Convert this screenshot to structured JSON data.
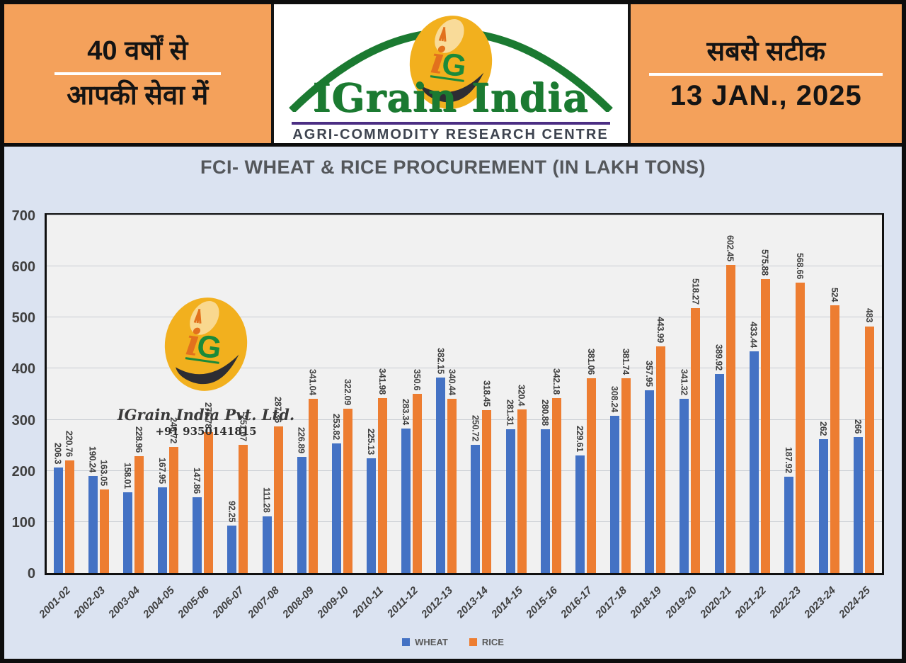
{
  "header": {
    "left": {
      "line1": "40 वर्षों से",
      "line2": "आपकी सेवा में"
    },
    "center": {
      "monogram": "iG",
      "brand": "IGrain India",
      "tagline": "AGRI-COMMODITY RESEARCH CENTRE"
    },
    "right": {
      "line1": "सबसे सटीक",
      "date": "13 JAN., 2025"
    }
  },
  "watermark": {
    "monogram": "iG",
    "company": "IGrain India Pvt. Ltd.",
    "phone": "+91 9350141815"
  },
  "colors": {
    "header_orange": "#f4a15b",
    "brand_green": "#1b7a31",
    "purple": "#4b2e83",
    "wheat_blue": "#4472c4",
    "rice_orange": "#ed7d31",
    "panel_blue": "#dbe3f1",
    "plot_gray": "#f1f1f1"
  },
  "chart_data": {
    "type": "bar",
    "title": "FCI- WHEAT & RICE PROCUREMENT (IN LAKH TONS)",
    "categories": [
      "2001-02",
      "2002-03",
      "2003-04",
      "2004-05",
      "2005-06",
      "2006-07",
      "2007-08",
      "2008-09",
      "2009-10",
      "2010-11",
      "2011-12",
      "2012-13",
      "2013-14",
      "2014-15",
      "2015-16",
      "2016-17",
      "2017-18",
      "2018-19",
      "2019-20",
      "2020-21",
      "2021-22",
      "2022-23",
      "2023-24",
      "2024-25"
    ],
    "series": [
      {
        "name": "WHEAT",
        "color": "#4472c4",
        "values": [
          206.3,
          190.24,
          158.01,
          167.95,
          147.86,
          92.25,
          111.28,
          226.89,
          253.82,
          225.13,
          283.34,
          382.15,
          250.72,
          281.31,
          280.88,
          229.61,
          308.24,
          357.95,
          341.32,
          389.92,
          433.44,
          187.92,
          262,
          266
        ]
      },
      {
        "name": "RICE",
        "color": "#ed7d31",
        "values": [
          220.76,
          163.05,
          228.96,
          246.72,
          275.78,
          251.07,
          287.36,
          341.04,
          322.09,
          341.98,
          350.6,
          340.44,
          318.45,
          320.4,
          342.18,
          381.06,
          381.74,
          443.99,
          518.27,
          602.45,
          575.88,
          568.66,
          524,
          483
        ]
      }
    ],
    "ylim": [
      0,
      700
    ],
    "yticks": [
      0,
      100,
      200,
      300,
      400,
      500,
      600,
      700
    ],
    "grid": true,
    "legend_position": "bottom",
    "xlabel": "",
    "ylabel": ""
  }
}
